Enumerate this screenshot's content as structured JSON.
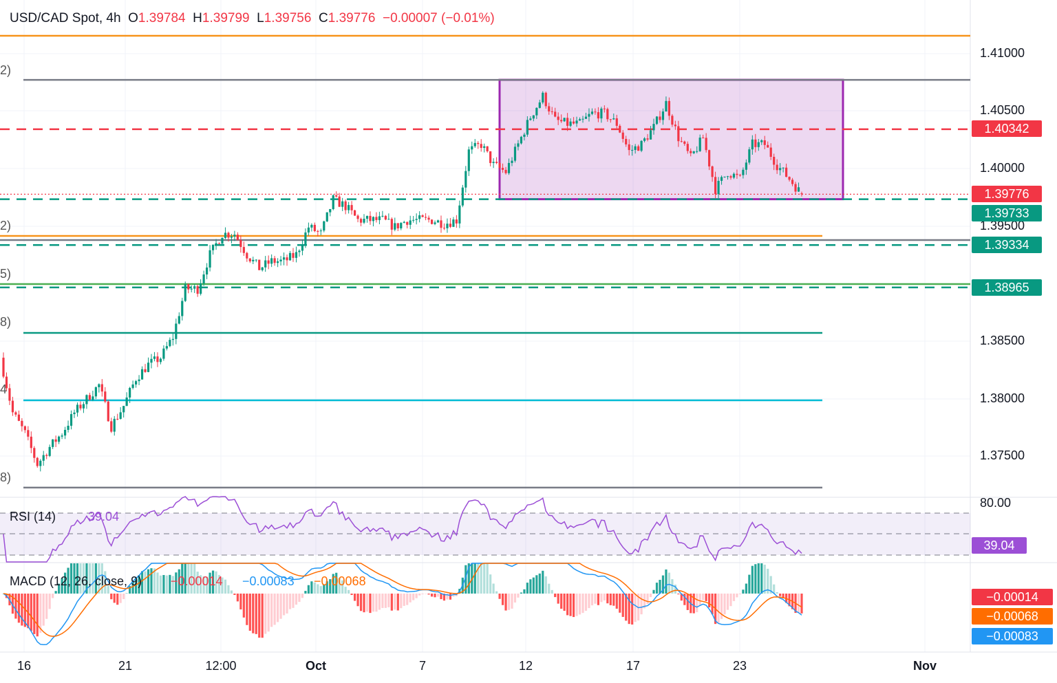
{
  "header": {
    "symbol": "USD/CAD Spot, 4h",
    "o_label": "O",
    "o": "1.39784",
    "h_label": "H",
    "h": "1.39799",
    "l_label": "L",
    "l": "1.39756",
    "c_label": "C",
    "c": "1.39776",
    "change": "−0.00007 (−0.01%)"
  },
  "colors": {
    "up": "#089981",
    "down": "#f23645",
    "rsi": "#9c4fd6",
    "macd": "#2196f3",
    "signal": "#ff6d00",
    "box": "#9c27b0"
  },
  "fib_labels": [
    "2)",
    "2)",
    "5)",
    "8)",
    "4",
    "8)"
  ],
  "indicators": {
    "rsi": {
      "label": "RSI (14)",
      "value": "39.04",
      "axis": "80.00"
    },
    "macd": {
      "label": "MACD (12, 26, close, 9)",
      "hist": "−0.00014",
      "macd": "−0.00083",
      "signal": "−0.00068"
    }
  },
  "chart_data": {
    "type": "candlestick",
    "title": "USD/CAD Spot, 4h",
    "ylim": [
      1.3705,
      1.4138
    ],
    "price_ticks": [
      "1.41000",
      "1.40500",
      "1.40000",
      "1.39500",
      "1.38500",
      "1.38000",
      "1.37500"
    ],
    "time_ticks": [
      {
        "label": "16",
        "bold": false
      },
      {
        "label": "21",
        "bold": false
      },
      {
        "label": "12:00",
        "bold": false
      },
      {
        "label": "Oct",
        "bold": true
      },
      {
        "label": "7",
        "bold": false
      },
      {
        "label": "12",
        "bold": false
      },
      {
        "label": "17",
        "bold": false
      },
      {
        "label": "23",
        "bold": false
      },
      {
        "label": "Nov",
        "bold": true
      }
    ],
    "close_path": [
      1.38353,
      1.37874,
      1.37695,
      1.37425,
      1.37575,
      1.37695,
      1.37874,
      1.37994,
      1.38114,
      1.37754,
      1.37934,
      1.38174,
      1.38293,
      1.38353,
      1.38533,
      1.38952,
      1.38952,
      1.39251,
      1.39431,
      1.39431,
      1.39251,
      1.39132,
      1.39192,
      1.39192,
      1.39251,
      1.39491,
      1.39431,
      1.39731,
      1.39671,
      1.39551,
      1.39551,
      1.39551,
      1.39491,
      1.39551,
      1.39551,
      1.39551,
      1.39521,
      1.39551,
      1.4015,
      1.4021,
      1.4003,
      1.3997,
      1.4021,
      1.40449,
      1.40629,
      1.40419,
      1.40389,
      1.40389,
      1.40479,
      1.40479,
      1.40389,
      1.4015,
      1.4021,
      1.40359,
      1.40569,
      1.40269,
      1.4009,
      1.40269,
      1.3982,
      1.3997,
      1.3991,
      1.4021,
      1.4021,
      1.4003,
      1.3991,
      1.39776
    ],
    "last_candle": {
      "o": 1.39784,
      "h": 1.39799,
      "l": 1.39756,
      "c": 1.39776
    },
    "levels": [
      {
        "price": 1.41156,
        "color": "#f7931a",
        "style": "solid"
      },
      {
        "price": 1.40772,
        "color": "#787b86",
        "style": "solid"
      },
      {
        "price": 1.40342,
        "color": "#f23645",
        "style": "dashed",
        "tag": "1.40342"
      },
      {
        "price": 1.39776,
        "color": "#f23645",
        "style": "dotted",
        "tag": "1.39776"
      },
      {
        "price": 1.39733,
        "color": "#089981",
        "style": "dashed",
        "tag": "1.39733"
      },
      {
        "price": 1.39413,
        "color": "#f7931a",
        "style": "solid"
      },
      {
        "price": 1.39377,
        "color": "#787b86",
        "style": "solid"
      },
      {
        "price": 1.39334,
        "color": "#089981",
        "style": "dashed",
        "tag": "1.39334"
      },
      {
        "price": 1.38994,
        "color": "#4caf50",
        "style": "solid"
      },
      {
        "price": 1.38965,
        "color": "#089981",
        "style": "dashed",
        "tag": "1.38965"
      },
      {
        "price": 1.38569,
        "color": "#089981",
        "style": "solid"
      },
      {
        "price": 1.37982,
        "color": "#00bcd4",
        "style": "solid"
      },
      {
        "price": 1.37222,
        "color": "#787b86",
        "style": "solid"
      }
    ],
    "range_box": {
      "top": 1.40772,
      "bottom": 1.39733
    }
  }
}
